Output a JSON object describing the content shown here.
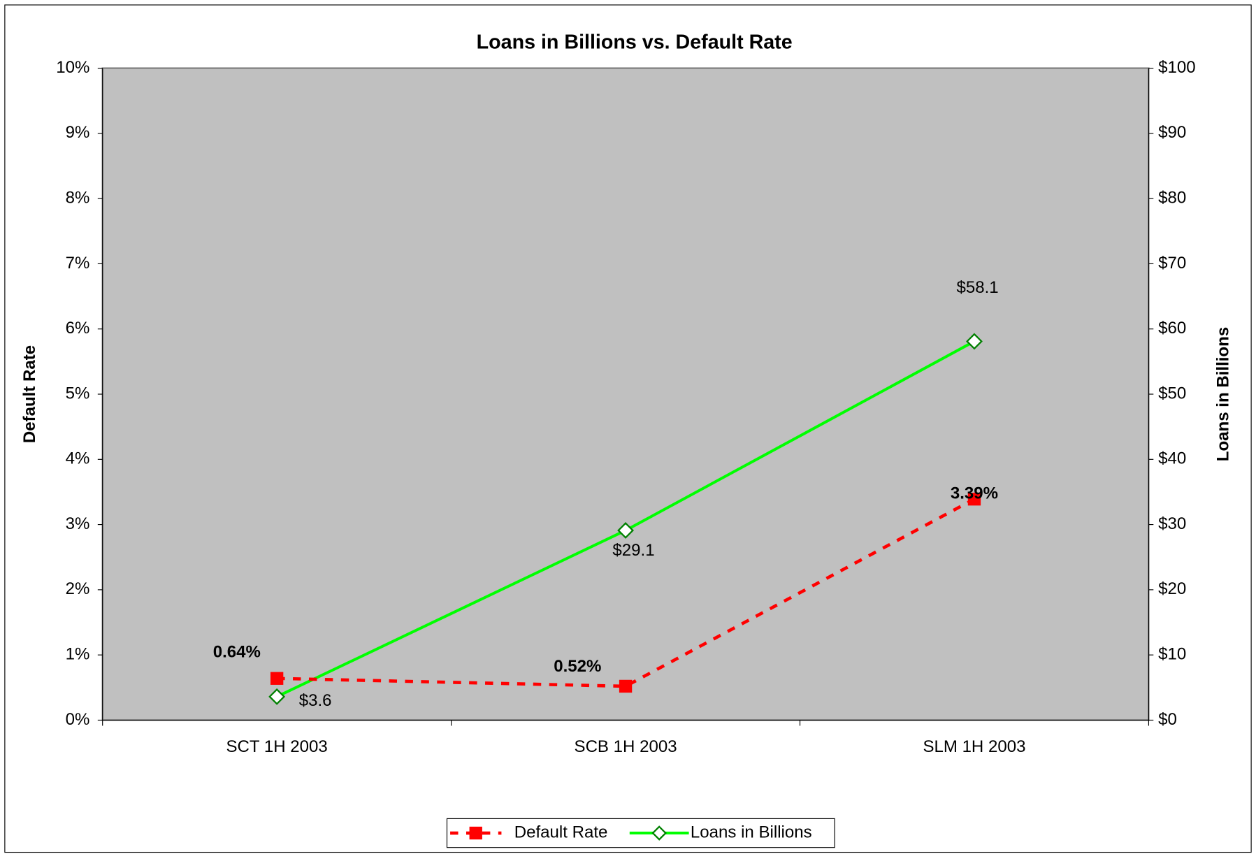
{
  "chart_data": {
    "type": "line",
    "title": "Loans in Billions vs. Default Rate",
    "y_label": "Default Rate",
    "y2_label": "Loans in Billions",
    "categories": [
      "SCT 1H 2003",
      "SCB 1H 2003",
      "SLM 1H 2003"
    ],
    "series": [
      {
        "name": "Default Rate",
        "color": "#ff0000",
        "values": [
          0.64,
          0.52,
          3.39
        ],
        "value_labels": [
          "0.64%",
          "0.52%",
          "3.39%"
        ]
      },
      {
        "name": "Loans in Billions",
        "color": "#00ff00",
        "axis": "y2",
        "values": [
          3.6,
          29.1,
          58.1
        ],
        "value_labels": [
          "$3.6",
          "$29.1",
          "$58.1"
        ]
      }
    ],
    "ylim": [
      0,
      10
    ],
    "yticks": [
      {
        "value": 0,
        "label": "0%"
      },
      {
        "value": 1,
        "label": "1%"
      },
      {
        "value": 2,
        "label": "2%"
      },
      {
        "value": 3,
        "label": "3%"
      },
      {
        "value": 4,
        "label": "4%"
      },
      {
        "value": 5,
        "label": "5%"
      },
      {
        "value": 6,
        "label": "6%"
      },
      {
        "value": 7,
        "label": "7%"
      },
      {
        "value": 8,
        "label": "8%"
      },
      {
        "value": 9,
        "label": "9%"
      },
      {
        "value": 10,
        "label": "10%"
      }
    ],
    "y2lim": [
      0,
      100
    ],
    "y2ticks": [
      {
        "value": 0,
        "label": "$0"
      },
      {
        "value": 10,
        "label": "$10"
      },
      {
        "value": 20,
        "label": "$20"
      },
      {
        "value": 30,
        "label": "$30"
      },
      {
        "value": 40,
        "label": "$40"
      },
      {
        "value": 50,
        "label": "$50"
      },
      {
        "value": 60,
        "label": "$60"
      },
      {
        "value": 70,
        "label": "$70"
      },
      {
        "value": 80,
        "label": "$80"
      },
      {
        "value": 90,
        "label": "$90"
      },
      {
        "value": 100,
        "label": "$100"
      }
    ],
    "legend": "bottom"
  }
}
